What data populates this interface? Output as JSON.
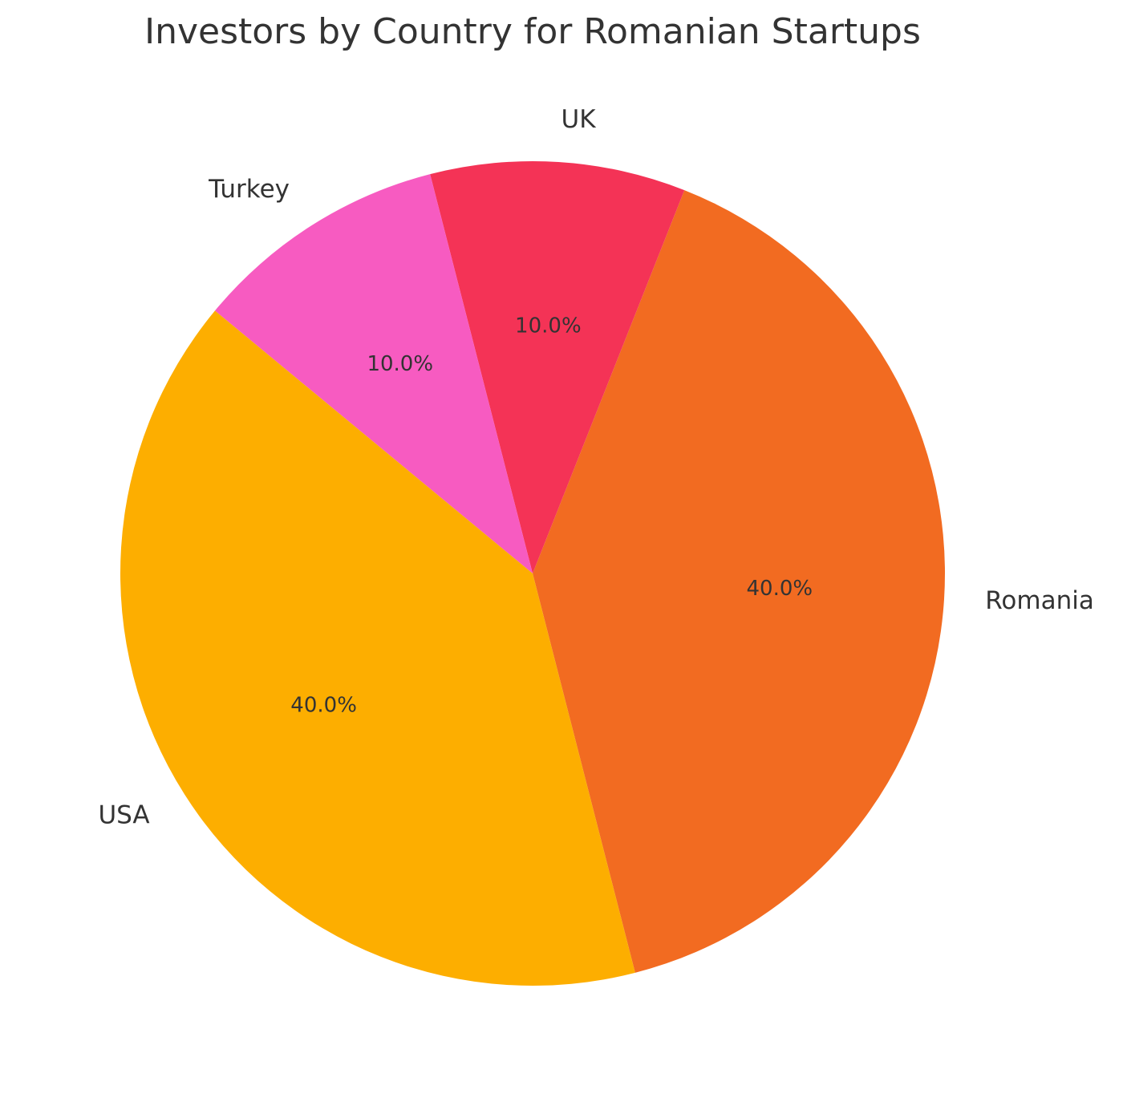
{
  "chart_data": {
    "type": "pie",
    "title": "Investors by Country for Romanian Startups",
    "categories": [
      "Romania",
      "UK",
      "Turkey",
      "USA"
    ],
    "values": [
      40,
      10,
      10,
      40
    ],
    "value_labels": [
      "40.0%",
      "10.0%",
      "10.0%",
      "40.0%"
    ],
    "colors": [
      "#f26b21",
      "#f43356",
      "#f75bc1",
      "#fdae00"
    ]
  }
}
